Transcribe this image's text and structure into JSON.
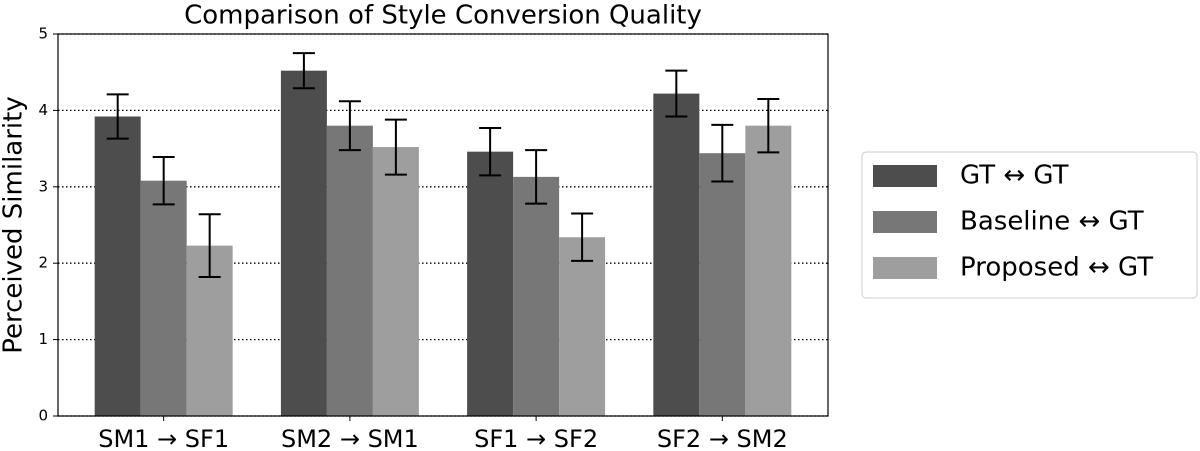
{
  "chart_data": {
    "type": "bar",
    "title": "Comparison of Style Conversion Quality",
    "y_label": "Perceived Similarity",
    "categories": [
      "SM1 → SF1",
      "SM2 → SM1",
      "SF1 → SF2",
      "SF2 → SM2"
    ],
    "series": [
      {
        "name": "GT ↔ GT",
        "color": "#4d4d4d",
        "values": [
          3.92,
          4.52,
          3.46,
          4.22
        ],
        "errors": [
          0.29,
          0.23,
          0.31,
          0.3
        ]
      },
      {
        "name": "Baseline ↔ GT",
        "color": "#777777",
        "values": [
          3.08,
          3.8,
          3.13,
          3.44
        ],
        "errors": [
          0.31,
          0.32,
          0.35,
          0.37
        ]
      },
      {
        "name": "Proposed ↔ GT",
        "color": "#9e9e9e",
        "values": [
          2.23,
          3.52,
          2.34,
          3.8
        ],
        "errors": [
          0.41,
          0.36,
          0.31,
          0.35
        ]
      }
    ],
    "ylim": [
      0,
      5
    ],
    "yticks": [
      0,
      1,
      2,
      3,
      4,
      5
    ],
    "grid": true,
    "legend": "right"
  }
}
